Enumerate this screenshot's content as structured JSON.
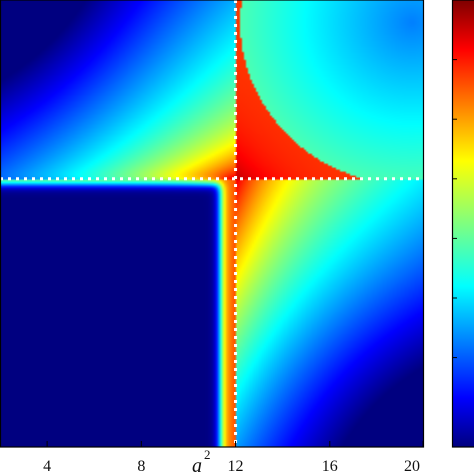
{
  "chart_data": {
    "type": "heatmap",
    "title": "",
    "xlabel": "a",
    "xlabel_sup": "2",
    "ylabel": "",
    "xlim": [
      2,
      20
    ],
    "ylim": [
      0,
      20
    ],
    "x_ticks": [
      "4",
      "8",
      "12",
      "16",
      "20"
    ],
    "x_tick_values": [
      4,
      8,
      12,
      16,
      20
    ],
    "grid": false,
    "colormap": "jet",
    "colorbar": true,
    "reference_lines": [
      {
        "orientation": "vertical",
        "x": 12,
        "style": "dotted",
        "color": "#ffffff"
      },
      {
        "orientation": "horizontal",
        "y": 12,
        "style": "dotted",
        "color": "#ffffff"
      }
    ],
    "regions": [
      {
        "name": "low-region",
        "x_range": [
          2,
          11.5
        ],
        "y_range": [
          0,
          11.5
        ],
        "level": 0.0
      },
      {
        "name": "peak-region",
        "near": [
          12,
          12
        ],
        "level": 1.0
      }
    ]
  },
  "colors": {
    "jet_low": "#00007f",
    "jet_high": "#7f0000",
    "axis": "#000000"
  }
}
